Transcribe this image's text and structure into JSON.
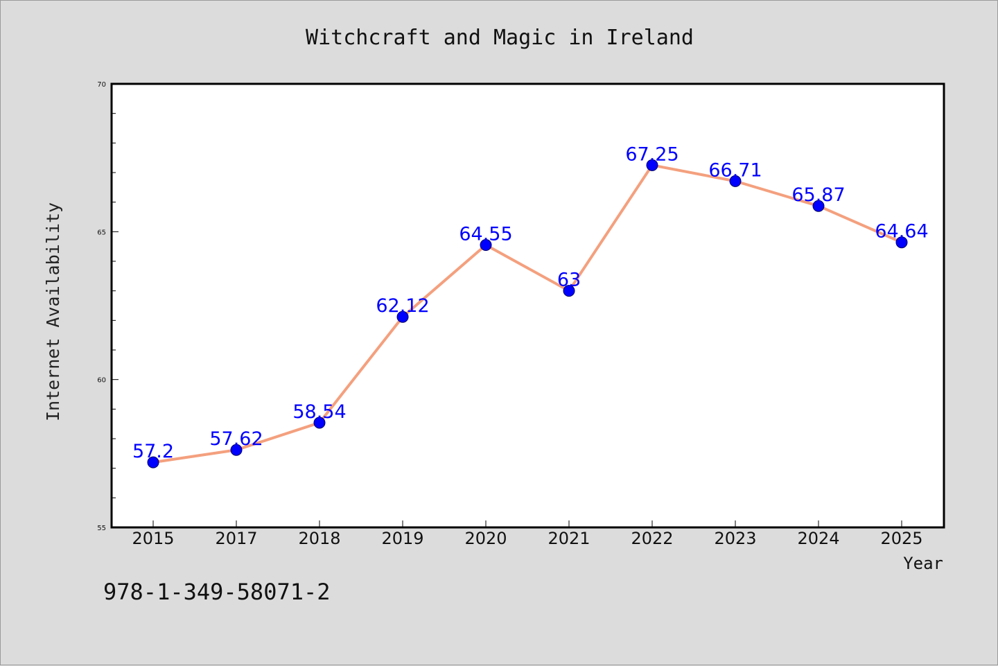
{
  "chart_data": {
    "type": "line",
    "title": "Witchcraft and Magic in Ireland",
    "xlabel": "Year",
    "ylabel": "Internet Availability",
    "categories": [
      "2015",
      "2017",
      "2018",
      "2019",
      "2020",
      "2021",
      "2022",
      "2023",
      "2024",
      "2025"
    ],
    "series": [
      {
        "values": [
          57.2,
          57.62,
          58.54,
          62.12,
          64.55,
          63,
          67.25,
          66.71,
          65.87,
          64.64
        ],
        "line_color": "#f4a07e",
        "marker_color": "#0000ff"
      }
    ],
    "data_labels": [
      "57.2",
      "57.62",
      "58.54",
      "62.12",
      "64.55",
      "63",
      "67.25",
      "66.71",
      "65.87",
      "64.64"
    ],
    "ylim": [
      55,
      70
    ],
    "yticks": [
      "55",
      "60",
      "65",
      "70"
    ],
    "grid": false,
    "legend": "none"
  },
  "footer": {
    "isbn": "978-1-349-58071-2"
  }
}
